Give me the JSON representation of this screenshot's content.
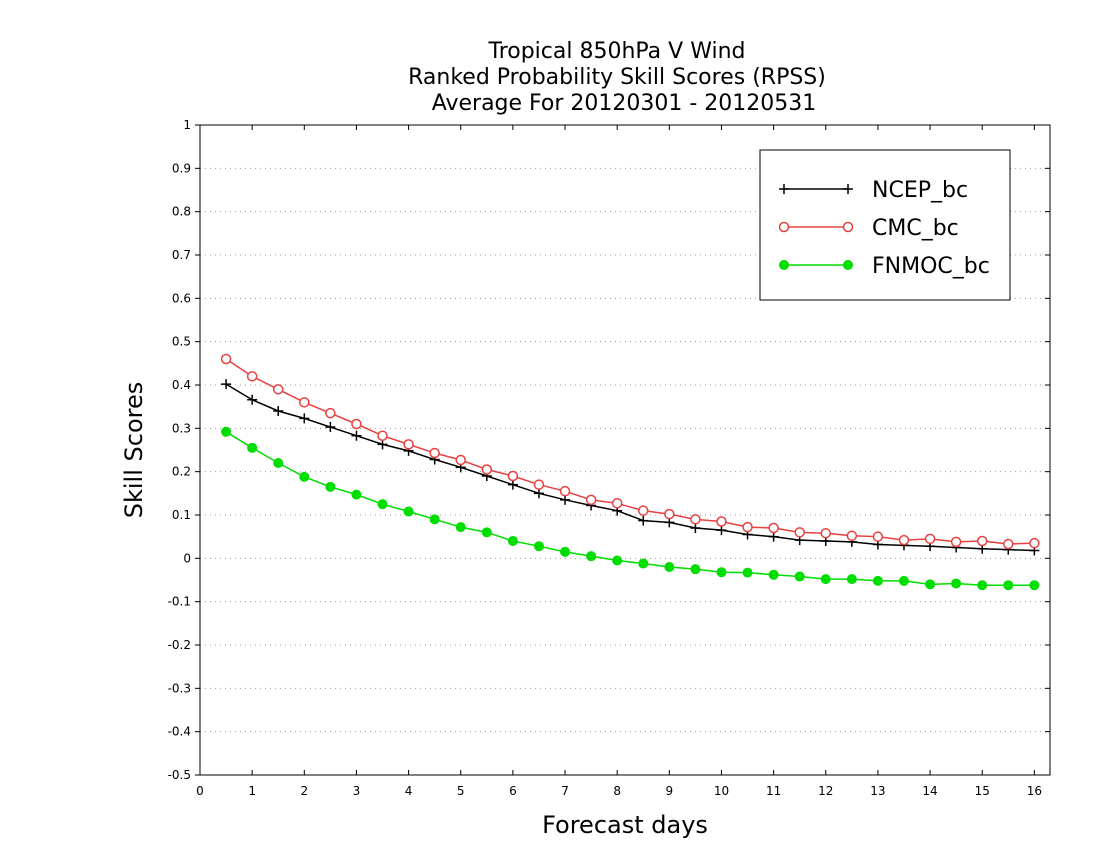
{
  "chart_data": {
    "type": "line",
    "title_lines": [
      "Tropical 850hPa V Wind",
      "Ranked Probability Skill Scores (RPSS)",
      "Average For 20120301 - 20120531"
    ],
    "xlabel": "Forecast days",
    "ylabel": "Skill Scores",
    "xlim": [
      0,
      16.3
    ],
    "ylim": [
      -0.5,
      1
    ],
    "x_ticks": [
      "0",
      "1",
      "2",
      "3",
      "4",
      "5",
      "6",
      "7",
      "8",
      "9",
      "10",
      "11",
      "12",
      "13",
      "14",
      "15",
      "16"
    ],
    "y_ticks": [
      "1",
      "0.9",
      "0.8",
      "0.7",
      "0.6",
      "0.5",
      "0.4",
      "0.3",
      "0.2",
      "0.1",
      "0",
      "-0.1",
      "-0.2",
      "-0.3",
      "-0.4",
      "-0.5"
    ],
    "y_tick_values": [
      1,
      0.9,
      0.8,
      0.7,
      0.6,
      0.5,
      0.4,
      0.3,
      0.2,
      0.1,
      0,
      -0.1,
      -0.2,
      -0.3,
      -0.4,
      -0.5
    ],
    "grid": "horizontal dotted",
    "legend_position": "top-right",
    "x": [
      0.5,
      1,
      1.5,
      2,
      2.5,
      3,
      3.5,
      4,
      4.5,
      5,
      5.5,
      6,
      6.5,
      7,
      7.5,
      8,
      8.5,
      9,
      9.5,
      10,
      10.5,
      11,
      11.5,
      12,
      12.5,
      13,
      13.5,
      14,
      14.5,
      15,
      15.5,
      16
    ],
    "series": [
      {
        "name": "NCEP_bc",
        "color": "#000000",
        "marker": "plus",
        "values": [
          0.402,
          0.366,
          0.34,
          0.323,
          0.303,
          0.283,
          0.263,
          0.248,
          0.228,
          0.21,
          0.19,
          0.17,
          0.15,
          0.135,
          0.122,
          0.11,
          0.087,
          0.083,
          0.07,
          0.065,
          0.055,
          0.05,
          0.042,
          0.04,
          0.038,
          0.032,
          0.03,
          0.028,
          0.025,
          0.022,
          0.02,
          0.018
        ]
      },
      {
        "name": "CMC_bc",
        "color": "#e84040",
        "marker": "open-circle",
        "values": [
          0.46,
          0.42,
          0.39,
          0.36,
          0.335,
          0.31,
          0.283,
          0.263,
          0.243,
          0.227,
          0.205,
          0.19,
          0.17,
          0.155,
          0.135,
          0.127,
          0.11,
          0.102,
          0.09,
          0.085,
          0.072,
          0.07,
          0.06,
          0.058,
          0.052,
          0.05,
          0.042,
          0.045,
          0.038,
          0.04,
          0.033,
          0.035
        ]
      },
      {
        "name": "FNMOC_bc",
        "color": "#00dd00",
        "marker": "filled-circle",
        "values": [
          0.292,
          0.255,
          0.22,
          0.188,
          0.165,
          0.147,
          0.125,
          0.108,
          0.09,
          0.072,
          0.06,
          0.04,
          0.028,
          0.015,
          0.005,
          -0.005,
          -0.012,
          -0.02,
          -0.025,
          -0.032,
          -0.033,
          -0.038,
          -0.042,
          -0.048,
          -0.048,
          -0.052,
          -0.052,
          -0.06,
          -0.058,
          -0.062,
          -0.062,
          -0.062
        ]
      }
    ]
  }
}
